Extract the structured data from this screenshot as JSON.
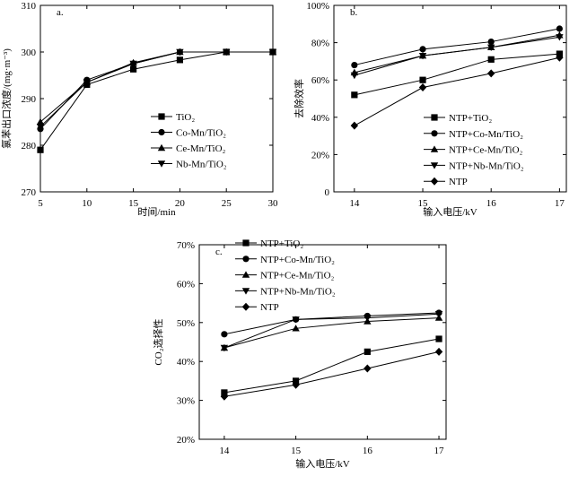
{
  "chart_data": [
    {
      "panel": "a.",
      "type": "line",
      "xlabel": "时间/min",
      "ylabel": "氯苯出口浓度/(mg·m⁻³)",
      "xlim": [
        5,
        30
      ],
      "ylim": [
        270,
        310
      ],
      "xticks": [
        5,
        10,
        15,
        20,
        25,
        30
      ],
      "yticks": [
        270,
        280,
        290,
        300,
        310
      ],
      "yticklabels": [
        "270",
        "280",
        "290",
        "300",
        "310"
      ],
      "x": [
        5,
        10,
        15,
        20,
        25,
        30
      ],
      "series": [
        {
          "name": "TiO₂",
          "marker": "square",
          "values": [
            279,
            293,
            296.3,
            298.3,
            300,
            300
          ]
        },
        {
          "name": "Co-Mn/TiO₂",
          "marker": "circle",
          "values": [
            283.5,
            294,
            297.5,
            300,
            300,
            300
          ]
        },
        {
          "name": "Ce-Mn/TiO₂",
          "marker": "triangle-up",
          "values": [
            285,
            293.5,
            297.7,
            300,
            300,
            300
          ]
        },
        {
          "name": "Nb-Mn/TiO₂",
          "marker": "triangle-down",
          "values": [
            284,
            293.5,
            297.5,
            300,
            300,
            300
          ]
        }
      ],
      "legend": "center-right"
    },
    {
      "panel": "b.",
      "type": "line",
      "xlabel": "输入电压/kV",
      "ylabel": "去除效率",
      "xlim": [
        13.7,
        17.1
      ],
      "ylim": [
        0,
        100
      ],
      "xticks": [
        14,
        15,
        16,
        17
      ],
      "yticks": [
        0,
        20,
        40,
        60,
        80,
        100
      ],
      "yticklabels": [
        "0",
        "20%",
        "40%",
        "60%",
        "80%",
        "100%"
      ],
      "x": [
        14,
        15,
        16,
        17
      ],
      "series": [
        {
          "name": "NTP+TiO₂",
          "marker": "square",
          "values": [
            52,
            60,
            71,
            74
          ]
        },
        {
          "name": "NTP+Co-Mn/TiO₂",
          "marker": "circle",
          "values": [
            68,
            76.5,
            80.5,
            87.5
          ]
        },
        {
          "name": "NTP+Ce-Mn/TiO₂",
          "marker": "triangle-up",
          "values": [
            64,
            73,
            77.5,
            84
          ]
        },
        {
          "name": "NTP+Nb-Mn/TiO₂",
          "marker": "triangle-down",
          "values": [
            62.5,
            73,
            77.5,
            83
          ]
        },
        {
          "name": "NTP",
          "marker": "diamond",
          "values": [
            35.5,
            56,
            63.5,
            72
          ]
        }
      ],
      "legend": "bottom-right"
    },
    {
      "panel": "c.",
      "type": "line",
      "xlabel": "输入电压/kV",
      "ylabel": "CO₂选择性",
      "xlim": [
        13.65,
        17.1
      ],
      "ylim": [
        20,
        70
      ],
      "xticks": [
        14,
        15,
        16,
        17
      ],
      "yticks": [
        20,
        30,
        40,
        50,
        60,
        70
      ],
      "yticklabels": [
        "20%",
        "30%",
        "40%",
        "50%",
        "60%",
        "70%"
      ],
      "x": [
        14,
        15,
        16,
        17
      ],
      "series": [
        {
          "name": "NTP+TiO₂",
          "marker": "square",
          "values": [
            32,
            35,
            42.5,
            45.8
          ]
        },
        {
          "name": "NTP+Co-Mn/TiO₂",
          "marker": "circle",
          "values": [
            47,
            50.8,
            51.7,
            52.5
          ]
        },
        {
          "name": "NTP+Ce-Mn/TiO₂",
          "marker": "triangle-up",
          "values": [
            43.5,
            48.5,
            50.3,
            51.2
          ]
        },
        {
          "name": "NTP+Nb-Mn/TiO₂",
          "marker": "triangle-down",
          "values": [
            43.5,
            50.8,
            51.2,
            52.2
          ]
        },
        {
          "name": "NTP",
          "marker": "diamond",
          "values": [
            31,
            34,
            38.2,
            42.5
          ]
        }
      ],
      "legend": "top-left"
    }
  ]
}
